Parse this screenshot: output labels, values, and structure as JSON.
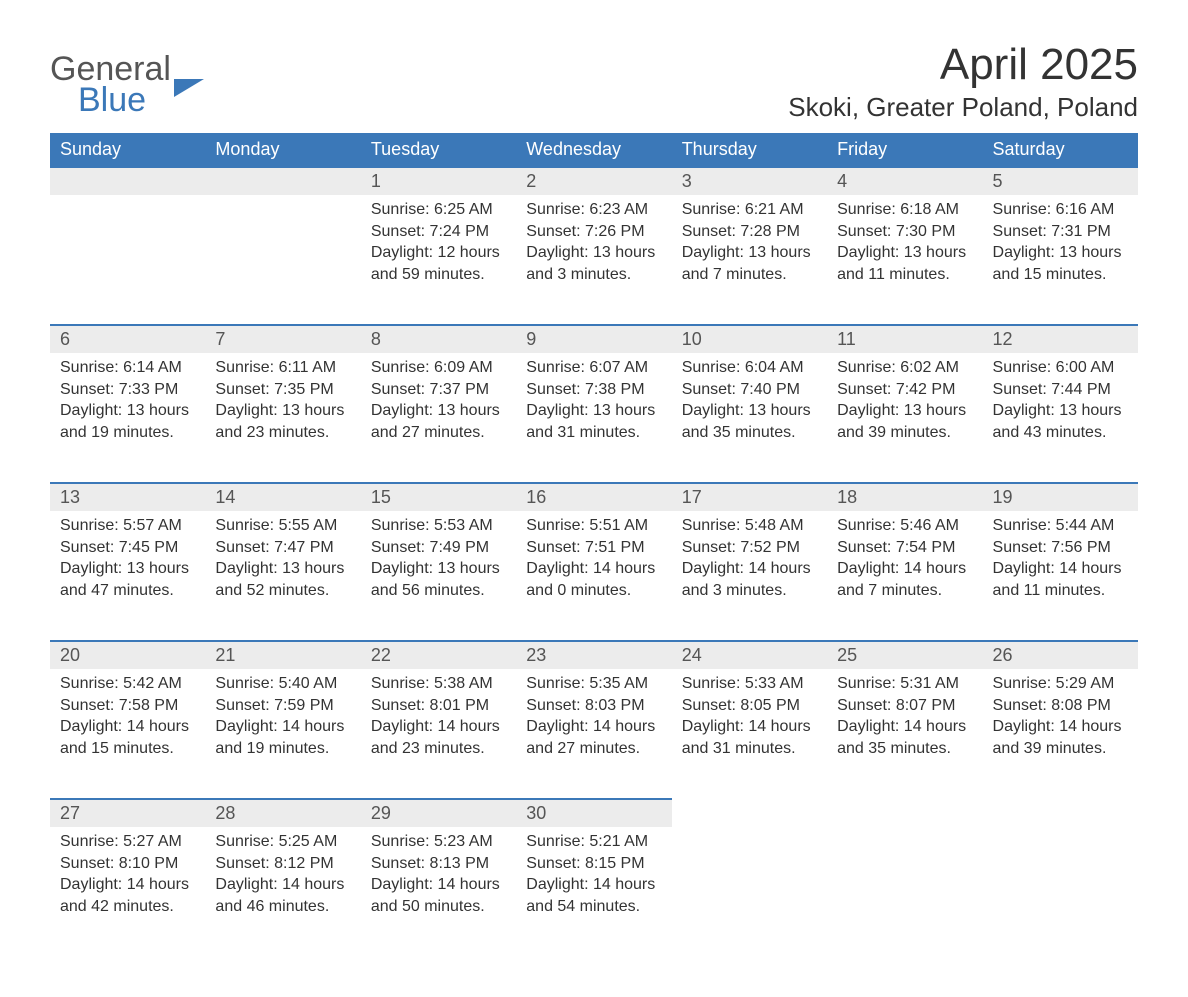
{
  "logo": {
    "line1": "General",
    "line2": "Blue"
  },
  "title": "April 2025",
  "location": "Skoki, Greater Poland, Poland",
  "colors": {
    "header_bg": "#3b78b8",
    "header_text": "#ffffff",
    "daynum_bg": "#ececec",
    "row_border": "#3b78b8",
    "body_text": "#333333",
    "page_bg": "#ffffff"
  },
  "typography": {
    "title_fontsize": 44,
    "location_fontsize": 26,
    "weekday_fontsize": 18,
    "daynum_fontsize": 18,
    "cell_fontsize": 16
  },
  "weekdays": [
    "Sunday",
    "Monday",
    "Tuesday",
    "Wednesday",
    "Thursday",
    "Friday",
    "Saturday"
  ],
  "weeks": [
    [
      null,
      null,
      {
        "d": "1",
        "sr": "6:25 AM",
        "ss": "7:24 PM",
        "dl": "12 hours and 59 minutes."
      },
      {
        "d": "2",
        "sr": "6:23 AM",
        "ss": "7:26 PM",
        "dl": "13 hours and 3 minutes."
      },
      {
        "d": "3",
        "sr": "6:21 AM",
        "ss": "7:28 PM",
        "dl": "13 hours and 7 minutes."
      },
      {
        "d": "4",
        "sr": "6:18 AM",
        "ss": "7:30 PM",
        "dl": "13 hours and 11 minutes."
      },
      {
        "d": "5",
        "sr": "6:16 AM",
        "ss": "7:31 PM",
        "dl": "13 hours and 15 minutes."
      }
    ],
    [
      {
        "d": "6",
        "sr": "6:14 AM",
        "ss": "7:33 PM",
        "dl": "13 hours and 19 minutes."
      },
      {
        "d": "7",
        "sr": "6:11 AM",
        "ss": "7:35 PM",
        "dl": "13 hours and 23 minutes."
      },
      {
        "d": "8",
        "sr": "6:09 AM",
        "ss": "7:37 PM",
        "dl": "13 hours and 27 minutes."
      },
      {
        "d": "9",
        "sr": "6:07 AM",
        "ss": "7:38 PM",
        "dl": "13 hours and 31 minutes."
      },
      {
        "d": "10",
        "sr": "6:04 AM",
        "ss": "7:40 PM",
        "dl": "13 hours and 35 minutes."
      },
      {
        "d": "11",
        "sr": "6:02 AM",
        "ss": "7:42 PM",
        "dl": "13 hours and 39 minutes."
      },
      {
        "d": "12",
        "sr": "6:00 AM",
        "ss": "7:44 PM",
        "dl": "13 hours and 43 minutes."
      }
    ],
    [
      {
        "d": "13",
        "sr": "5:57 AM",
        "ss": "7:45 PM",
        "dl": "13 hours and 47 minutes."
      },
      {
        "d": "14",
        "sr": "5:55 AM",
        "ss": "7:47 PM",
        "dl": "13 hours and 52 minutes."
      },
      {
        "d": "15",
        "sr": "5:53 AM",
        "ss": "7:49 PM",
        "dl": "13 hours and 56 minutes."
      },
      {
        "d": "16",
        "sr": "5:51 AM",
        "ss": "7:51 PM",
        "dl": "14 hours and 0 minutes."
      },
      {
        "d": "17",
        "sr": "5:48 AM",
        "ss": "7:52 PM",
        "dl": "14 hours and 3 minutes."
      },
      {
        "d": "18",
        "sr": "5:46 AM",
        "ss": "7:54 PM",
        "dl": "14 hours and 7 minutes."
      },
      {
        "d": "19",
        "sr": "5:44 AM",
        "ss": "7:56 PM",
        "dl": "14 hours and 11 minutes."
      }
    ],
    [
      {
        "d": "20",
        "sr": "5:42 AM",
        "ss": "7:58 PM",
        "dl": "14 hours and 15 minutes."
      },
      {
        "d": "21",
        "sr": "5:40 AM",
        "ss": "7:59 PM",
        "dl": "14 hours and 19 minutes."
      },
      {
        "d": "22",
        "sr": "5:38 AM",
        "ss": "8:01 PM",
        "dl": "14 hours and 23 minutes."
      },
      {
        "d": "23",
        "sr": "5:35 AM",
        "ss": "8:03 PM",
        "dl": "14 hours and 27 minutes."
      },
      {
        "d": "24",
        "sr": "5:33 AM",
        "ss": "8:05 PM",
        "dl": "14 hours and 31 minutes."
      },
      {
        "d": "25",
        "sr": "5:31 AM",
        "ss": "8:07 PM",
        "dl": "14 hours and 35 minutes."
      },
      {
        "d": "26",
        "sr": "5:29 AM",
        "ss": "8:08 PM",
        "dl": "14 hours and 39 minutes."
      }
    ],
    [
      {
        "d": "27",
        "sr": "5:27 AM",
        "ss": "8:10 PM",
        "dl": "14 hours and 42 minutes."
      },
      {
        "d": "28",
        "sr": "5:25 AM",
        "ss": "8:12 PM",
        "dl": "14 hours and 46 minutes."
      },
      {
        "d": "29",
        "sr": "5:23 AM",
        "ss": "8:13 PM",
        "dl": "14 hours and 50 minutes."
      },
      {
        "d": "30",
        "sr": "5:21 AM",
        "ss": "8:15 PM",
        "dl": "14 hours and 54 minutes."
      },
      null,
      null,
      null
    ]
  ],
  "labels": {
    "sunrise": "Sunrise: ",
    "sunset": "Sunset: ",
    "daylight": "Daylight: "
  }
}
